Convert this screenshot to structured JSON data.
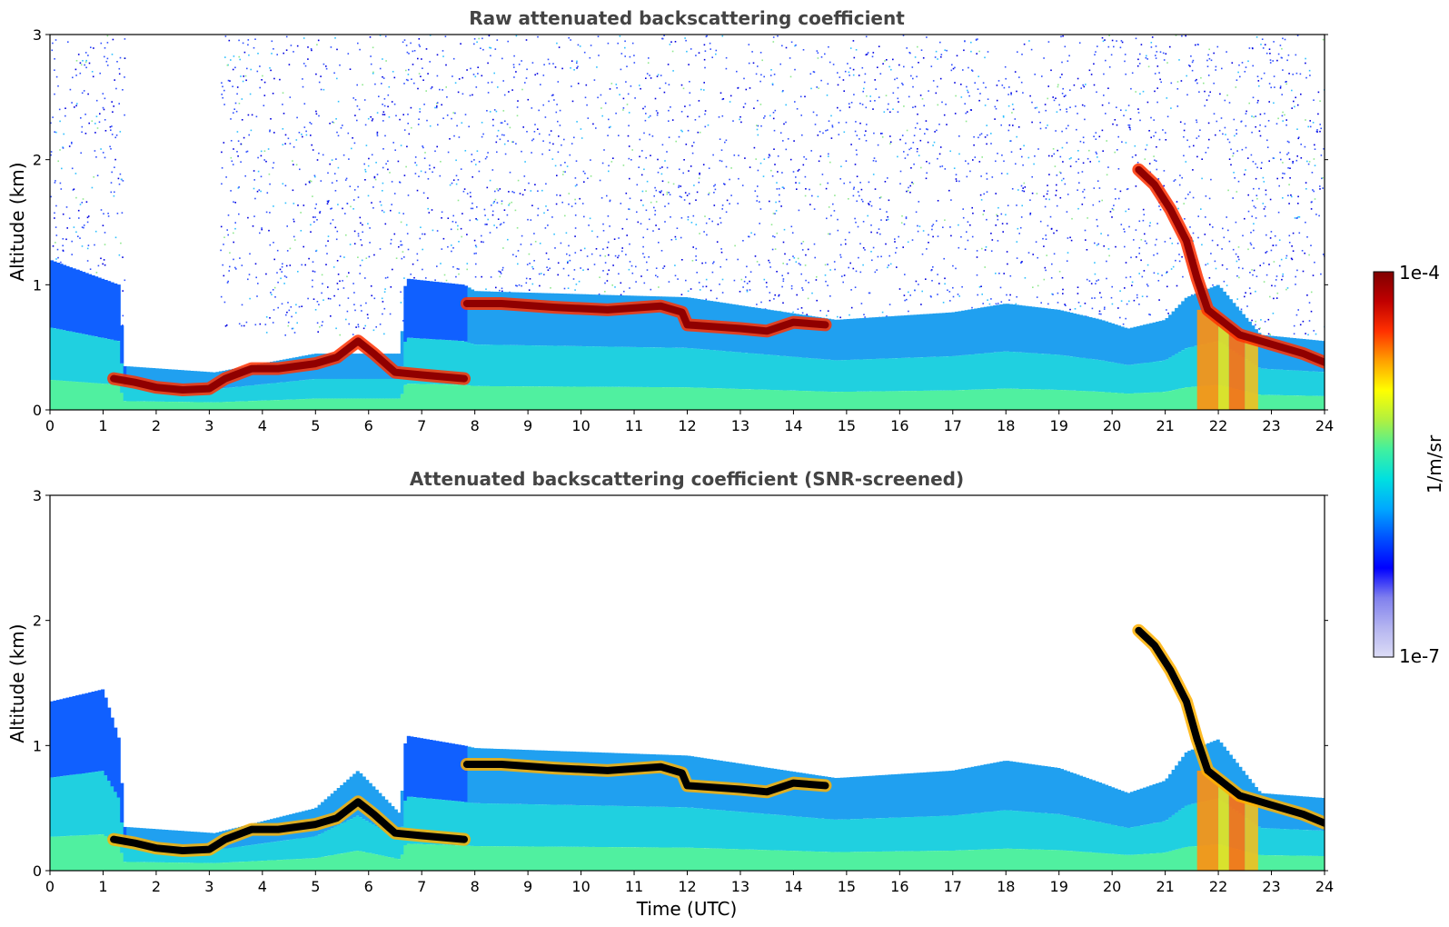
{
  "chart_data": [
    {
      "type": "heatmap",
      "title": "Raw attenuated backscattering coefficient",
      "xlabel": "",
      "ylabel": "Altitude (km)",
      "xlim": [
        0,
        24
      ],
      "ylim": [
        0,
        3
      ],
      "xticks": [
        "0",
        "1",
        "2",
        "3",
        "4",
        "5",
        "6",
        "7",
        "8",
        "9",
        "10",
        "11",
        "12",
        "13",
        "14",
        "15",
        "16",
        "17",
        "18",
        "19",
        "20",
        "21",
        "22",
        "23",
        "24"
      ],
      "yticks": [
        "0",
        "1",
        "2",
        "3"
      ],
      "background_noise": true,
      "cloud_layer_km": [
        [
          1.2,
          0.25
        ],
        [
          1.6,
          0.22
        ],
        [
          2.0,
          0.18
        ],
        [
          2.5,
          0.16
        ],
        [
          3.0,
          0.17
        ],
        [
          3.3,
          0.25
        ],
        [
          3.8,
          0.33
        ],
        [
          4.3,
          0.33
        ],
        [
          5.0,
          0.37
        ],
        [
          5.4,
          0.42
        ],
        [
          5.8,
          0.55
        ],
        [
          6.1,
          0.45
        ],
        [
          6.5,
          0.3
        ],
        [
          7.0,
          0.28
        ],
        [
          7.8,
          0.25
        ],
        [
          7.85,
          0.85
        ],
        [
          8.5,
          0.85
        ],
        [
          9.5,
          0.82
        ],
        [
          10.5,
          0.8
        ],
        [
          11.5,
          0.83
        ],
        [
          11.9,
          0.78
        ],
        [
          12.0,
          0.68
        ],
        [
          13.0,
          0.65
        ],
        [
          13.5,
          0.63
        ],
        [
          14.0,
          0.7
        ],
        [
          14.6,
          0.68
        ]
      ],
      "cloud_layer_late_km": [
        [
          20.5,
          1.92
        ],
        [
          20.8,
          1.8
        ],
        [
          21.1,
          1.6
        ],
        [
          21.4,
          1.35
        ],
        [
          21.6,
          1.05
        ],
        [
          21.8,
          0.8
        ],
        [
          22.4,
          0.6
        ],
        [
          22.8,
          0.55
        ],
        [
          23.2,
          0.5
        ],
        [
          23.6,
          0.45
        ],
        [
          24.0,
          0.38
        ]
      ],
      "boundary_layer_top_km": [
        [
          0,
          1.2
        ],
        [
          1.3,
          1.0
        ],
        [
          1.4,
          0.35
        ],
        [
          3.1,
          0.3
        ],
        [
          5.0,
          0.45
        ],
        [
          6.6,
          0.45
        ],
        [
          6.7,
          1.05
        ],
        [
          7.8,
          1.0
        ],
        [
          8,
          0.95
        ],
        [
          12,
          0.9
        ],
        [
          14.8,
          0.72
        ],
        [
          17,
          0.78
        ],
        [
          18,
          0.85
        ],
        [
          19,
          0.8
        ],
        [
          19.8,
          0.72
        ],
        [
          20.3,
          0.65
        ],
        [
          21,
          0.72
        ],
        [
          21.4,
          0.9
        ],
        [
          22,
          1.0
        ],
        [
          22.8,
          0.6
        ],
        [
          24,
          0.55
        ]
      ]
    },
    {
      "type": "heatmap",
      "title": "Attenuated backscattering coefficient (SNR-screened)",
      "xlabel": "Time (UTC)",
      "ylabel": "Altitude (km)",
      "xlim": [
        0,
        24
      ],
      "ylim": [
        0,
        3
      ],
      "xticks": [
        "0",
        "1",
        "2",
        "3",
        "4",
        "5",
        "6",
        "7",
        "8",
        "9",
        "10",
        "11",
        "12",
        "13",
        "14",
        "15",
        "16",
        "17",
        "18",
        "19",
        "20",
        "21",
        "22",
        "23",
        "24"
      ],
      "yticks": [
        "0",
        "1",
        "2",
        "3"
      ],
      "background_noise": false,
      "cloud_layer_km": [
        [
          1.2,
          0.25
        ],
        [
          1.6,
          0.22
        ],
        [
          2.0,
          0.18
        ],
        [
          2.5,
          0.16
        ],
        [
          3.0,
          0.17
        ],
        [
          3.3,
          0.25
        ],
        [
          3.8,
          0.33
        ],
        [
          4.3,
          0.33
        ],
        [
          5.0,
          0.37
        ],
        [
          5.4,
          0.42
        ],
        [
          5.8,
          0.55
        ],
        [
          6.1,
          0.45
        ],
        [
          6.5,
          0.3
        ],
        [
          7.0,
          0.28
        ],
        [
          7.8,
          0.25
        ],
        [
          7.85,
          0.85
        ],
        [
          8.5,
          0.85
        ],
        [
          9.5,
          0.82
        ],
        [
          10.5,
          0.8
        ],
        [
          11.5,
          0.83
        ],
        [
          11.9,
          0.78
        ],
        [
          12.0,
          0.68
        ],
        [
          13.0,
          0.65
        ],
        [
          13.5,
          0.63
        ],
        [
          14.0,
          0.7
        ],
        [
          14.6,
          0.68
        ]
      ],
      "cloud_layer_late_km": [
        [
          20.5,
          1.92
        ],
        [
          20.8,
          1.8
        ],
        [
          21.1,
          1.6
        ],
        [
          21.4,
          1.35
        ],
        [
          21.6,
          1.05
        ],
        [
          21.8,
          0.8
        ],
        [
          22.4,
          0.6
        ],
        [
          22.8,
          0.55
        ],
        [
          23.2,
          0.5
        ],
        [
          23.6,
          0.45
        ],
        [
          24.0,
          0.38
        ]
      ],
      "boundary_layer_top_km": [
        [
          0,
          1.35
        ],
        [
          1.0,
          1.45
        ],
        [
          1.3,
          1.05
        ],
        [
          1.4,
          0.35
        ],
        [
          3.1,
          0.3
        ],
        [
          5.0,
          0.5
        ],
        [
          5.8,
          0.8
        ],
        [
          6.6,
          0.45
        ],
        [
          6.7,
          1.08
        ],
        [
          7.8,
          1.0
        ],
        [
          8,
          0.98
        ],
        [
          12,
          0.92
        ],
        [
          14.8,
          0.74
        ],
        [
          17,
          0.8
        ],
        [
          18,
          0.88
        ],
        [
          19,
          0.82
        ],
        [
          19.8,
          0.7
        ],
        [
          20.3,
          0.62
        ],
        [
          21,
          0.72
        ],
        [
          21.4,
          0.95
        ],
        [
          22,
          1.05
        ],
        [
          22.8,
          0.62
        ],
        [
          24,
          0.58
        ]
      ]
    }
  ],
  "colorbar": {
    "label": "1/m/sr",
    "max_label": "1e-4",
    "min_label": "1e-7",
    "scale": "log",
    "colors": [
      "#dcdcf6",
      "#b4b4f0",
      "#8080ee",
      "#0000ff",
      "#0050ff",
      "#00a8ff",
      "#00e0e0",
      "#40f0a0",
      "#b0f040",
      "#ffff00",
      "#ffa000",
      "#ff3000",
      "#c00000",
      "#800000"
    ]
  }
}
